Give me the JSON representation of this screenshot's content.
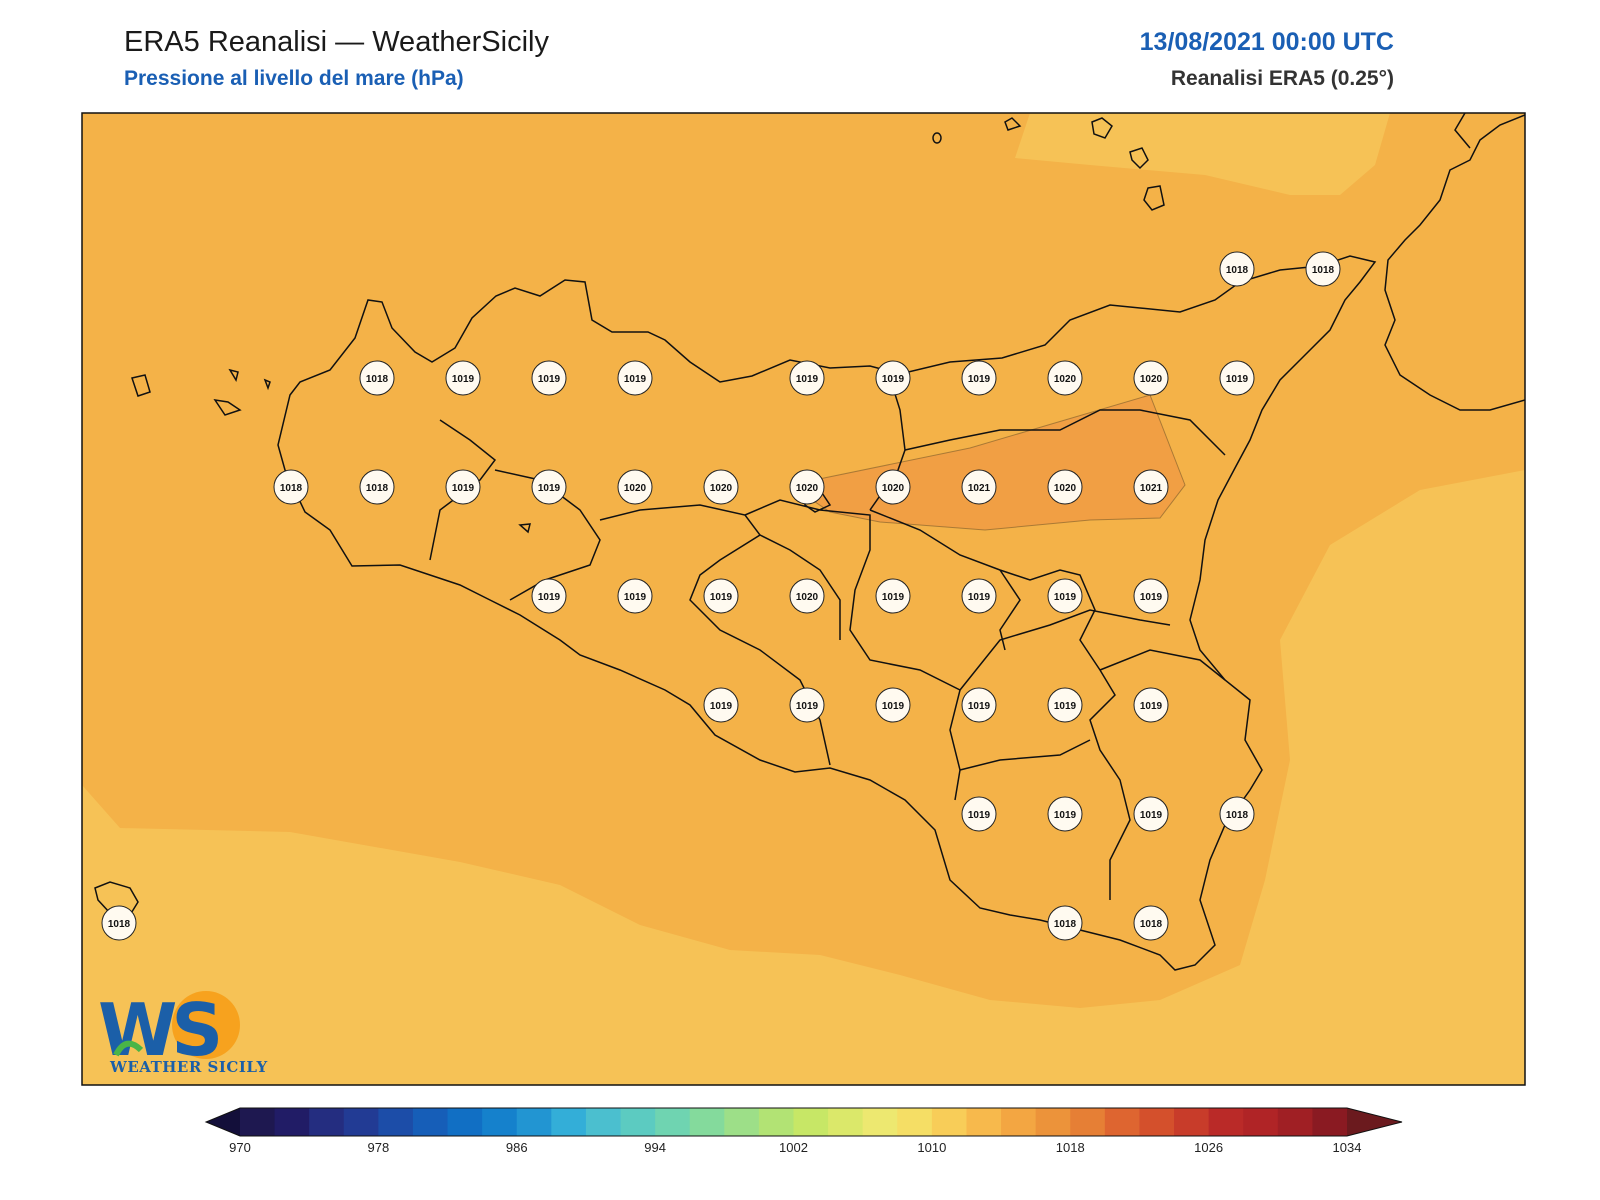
{
  "header": {
    "title": "ERA5 Reanalisi — WeatherSicily",
    "subtitle": "Pressione al livello del mare (hPa)",
    "date": "13/08/2021 00:00 UTC",
    "dataset": "Reanalisi ERA5 (0.25°)"
  },
  "logo": {
    "text": "WEATHER SICILY",
    "mark": "WS"
  },
  "colorbar": {
    "min": 970,
    "max": 1034,
    "step": 2,
    "ticks": [
      "970",
      "978",
      "986",
      "994",
      "1002",
      "1010",
      "1018",
      "1026",
      "1034"
    ],
    "colors": [
      "#1e1850",
      "#211c66",
      "#242d80",
      "#223b94",
      "#1c4da8",
      "#165eb8",
      "#116fc4",
      "#1581cc",
      "#2295d2",
      "#33aed8",
      "#4bbfcf",
      "#5ccbc1",
      "#6fd4b1",
      "#84da9c",
      "#9ddf88",
      "#b2e374",
      "#c7e766",
      "#dbe86a",
      "#ede870",
      "#f5de65",
      "#f8cd58",
      "#f7b94c",
      "#f3a642",
      "#ec933a",
      "#e67f35",
      "#de6530",
      "#d4502c",
      "#c83c2a",
      "#ba2a28",
      "#b02426",
      "#a01f24",
      "#8a1a22"
    ]
  },
  "map": {
    "colors": {
      "background": "#f4b248",
      "band_1020": "#f19f44",
      "band_1016": "#f6c256"
    }
  },
  "stations": [
    {
      "lon": 12.75,
      "lat": 38.25,
      "value": "1018"
    },
    {
      "lon": 13.0,
      "lat": 38.25,
      "value": "1019"
    },
    {
      "lon": 13.25,
      "lat": 38.25,
      "value": "1019"
    },
    {
      "lon": 13.5,
      "lat": 38.25,
      "value": "1019"
    },
    {
      "lon": 14.0,
      "lat": 38.25,
      "value": "1019"
    },
    {
      "lon": 14.25,
      "lat": 38.25,
      "value": "1019"
    },
    {
      "lon": 14.5,
      "lat": 38.25,
      "value": "1019"
    },
    {
      "lon": 14.75,
      "lat": 38.25,
      "value": "1020"
    },
    {
      "lon": 15.0,
      "lat": 38.25,
      "value": "1020"
    },
    {
      "lon": 15.25,
      "lat": 38.25,
      "value": "1019"
    },
    {
      "lon": 15.25,
      "lat": 38.5,
      "value": "1018"
    },
    {
      "lon": 15.5,
      "lat": 38.5,
      "value": "1018"
    },
    {
      "lon": 12.5,
      "lat": 38.0,
      "value": "1018"
    },
    {
      "lon": 12.75,
      "lat": 38.0,
      "value": "1018"
    },
    {
      "lon": 13.0,
      "lat": 38.0,
      "value": "1019"
    },
    {
      "lon": 13.25,
      "lat": 38.0,
      "value": "1019"
    },
    {
      "lon": 13.5,
      "lat": 38.0,
      "value": "1020"
    },
    {
      "lon": 13.75,
      "lat": 38.0,
      "value": "1020"
    },
    {
      "lon": 14.0,
      "lat": 38.0,
      "value": "1020"
    },
    {
      "lon": 14.25,
      "lat": 38.0,
      "value": "1020"
    },
    {
      "lon": 14.5,
      "lat": 38.0,
      "value": "1021"
    },
    {
      "lon": 14.75,
      "lat": 38.0,
      "value": "1020"
    },
    {
      "lon": 15.0,
      "lat": 38.0,
      "value": "1021"
    },
    {
      "lon": 13.25,
      "lat": 37.75,
      "value": "1019"
    },
    {
      "lon": 13.5,
      "lat": 37.75,
      "value": "1019"
    },
    {
      "lon": 13.75,
      "lat": 37.75,
      "value": "1019"
    },
    {
      "lon": 14.0,
      "lat": 37.75,
      "value": "1020"
    },
    {
      "lon": 14.25,
      "lat": 37.75,
      "value": "1019"
    },
    {
      "lon": 14.5,
      "lat": 37.75,
      "value": "1019"
    },
    {
      "lon": 14.75,
      "lat": 37.75,
      "value": "1019"
    },
    {
      "lon": 15.0,
      "lat": 37.75,
      "value": "1019"
    },
    {
      "lon": 13.75,
      "lat": 37.5,
      "value": "1019"
    },
    {
      "lon": 14.0,
      "lat": 37.5,
      "value": "1019"
    },
    {
      "lon": 14.25,
      "lat": 37.5,
      "value": "1019"
    },
    {
      "lon": 14.5,
      "lat": 37.5,
      "value": "1019"
    },
    {
      "lon": 14.75,
      "lat": 37.5,
      "value": "1019"
    },
    {
      "lon": 15.0,
      "lat": 37.5,
      "value": "1019"
    },
    {
      "lon": 14.5,
      "lat": 37.25,
      "value": "1019"
    },
    {
      "lon": 14.75,
      "lat": 37.25,
      "value": "1019"
    },
    {
      "lon": 15.0,
      "lat": 37.25,
      "value": "1019"
    },
    {
      "lon": 15.25,
      "lat": 37.25,
      "value": "1018"
    },
    {
      "lon": 14.75,
      "lat": 37.0,
      "value": "1018"
    },
    {
      "lon": 15.0,
      "lat": 37.0,
      "value": "1018"
    },
    {
      "lon": 12.0,
      "lat": 37.0,
      "value": "1018"
    }
  ]
}
